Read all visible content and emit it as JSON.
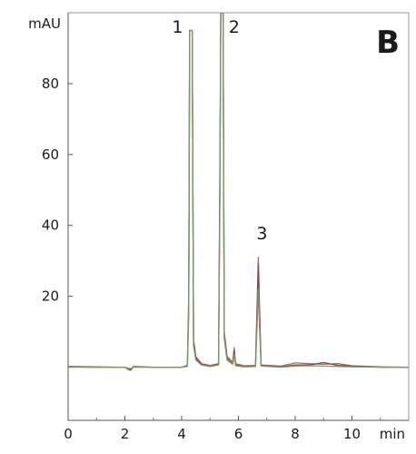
{
  "chart_data": {
    "type": "line",
    "panel_label": "B",
    "x_unit": "min",
    "y_unit": "mAU",
    "xlim": [
      0,
      12.0
    ],
    "ylim": [
      -15,
      100
    ],
    "x_ticks": [
      0,
      2,
      4,
      6,
      8,
      10
    ],
    "y_ticks": [
      20,
      40,
      60,
      80
    ],
    "grid": false,
    "peaks": [
      {
        "label": "1",
        "retention_time": 4.3
      },
      {
        "label": "2",
        "retention_time": 5.4
      },
      {
        "label": "3",
        "retention_time": 6.7
      }
    ],
    "series": [
      {
        "color": "#8b7a5a",
        "points": [
          [
            0,
            0.2
          ],
          [
            1.0,
            0.1
          ],
          [
            2.0,
            0
          ],
          [
            2.1,
            -0.6
          ],
          [
            2.2,
            -0.9
          ],
          [
            2.3,
            0.2
          ],
          [
            3.0,
            0
          ],
          [
            4.0,
            0
          ],
          [
            4.2,
            0.5
          ],
          [
            4.25,
            20
          ],
          [
            4.28,
            95
          ],
          [
            4.37,
            95
          ],
          [
            4.42,
            8
          ],
          [
            4.5,
            3
          ],
          [
            4.7,
            1
          ],
          [
            5.0,
            0.5
          ],
          [
            5.3,
            1
          ],
          [
            5.35,
            60
          ],
          [
            5.38,
            100
          ],
          [
            5.46,
            100
          ],
          [
            5.5,
            10
          ],
          [
            5.6,
            3
          ],
          [
            5.8,
            1.5
          ],
          [
            5.85,
            5.5
          ],
          [
            5.9,
            1
          ],
          [
            6.2,
            0.4
          ],
          [
            6.6,
            0.5
          ],
          [
            6.66,
            18
          ],
          [
            6.7,
            31
          ],
          [
            6.74,
            18
          ],
          [
            6.8,
            0.6
          ],
          [
            7.5,
            0.3
          ],
          [
            8.0,
            1.2
          ],
          [
            8.5,
            1
          ],
          [
            9.0,
            0.8
          ],
          [
            9.5,
            1.0
          ],
          [
            10.0,
            0.4
          ],
          [
            11.0,
            0.1
          ],
          [
            12.0,
            0
          ]
        ]
      },
      {
        "color": "#9e3d4a",
        "points": [
          [
            0,
            0.1
          ],
          [
            1.0,
            0
          ],
          [
            2.0,
            0
          ],
          [
            2.1,
            -0.4
          ],
          [
            2.2,
            -0.6
          ],
          [
            2.3,
            0.1
          ],
          [
            3.0,
            0
          ],
          [
            4.0,
            0
          ],
          [
            4.2,
            0.3
          ],
          [
            4.25,
            18
          ],
          [
            4.28,
            95
          ],
          [
            4.37,
            95
          ],
          [
            4.42,
            7
          ],
          [
            4.5,
            2.5
          ],
          [
            4.7,
            0.8
          ],
          [
            5.0,
            0.3
          ],
          [
            5.3,
            0.8
          ],
          [
            5.35,
            55
          ],
          [
            5.38,
            100
          ],
          [
            5.46,
            100
          ],
          [
            5.5,
            9
          ],
          [
            5.6,
            2.5
          ],
          [
            5.8,
            1
          ],
          [
            5.85,
            4.5
          ],
          [
            5.9,
            0.6
          ],
          [
            6.2,
            0.2
          ],
          [
            6.6,
            0.3
          ],
          [
            6.66,
            16
          ],
          [
            6.7,
            29
          ],
          [
            6.74,
            16
          ],
          [
            6.8,
            0.4
          ],
          [
            7.5,
            0.1
          ],
          [
            8.0,
            0.6
          ],
          [
            8.5,
            0.6
          ],
          [
            9.0,
            1.3
          ],
          [
            9.5,
            0.5
          ],
          [
            10.0,
            0.3
          ],
          [
            11.0,
            0
          ],
          [
            12.0,
            0
          ]
        ]
      },
      {
        "color": "#7a9a6e",
        "points": [
          [
            0,
            0
          ],
          [
            1.0,
            0
          ],
          [
            2.0,
            0
          ],
          [
            2.1,
            -0.3
          ],
          [
            2.2,
            -0.4
          ],
          [
            2.3,
            0
          ],
          [
            3.0,
            0
          ],
          [
            4.0,
            0
          ],
          [
            4.2,
            0.2
          ],
          [
            4.25,
            15
          ],
          [
            4.28,
            95
          ],
          [
            4.37,
            95
          ],
          [
            4.42,
            6
          ],
          [
            4.5,
            2
          ],
          [
            4.7,
            0.6
          ],
          [
            5.0,
            0.2
          ],
          [
            5.3,
            0.6
          ],
          [
            5.35,
            50
          ],
          [
            5.38,
            100
          ],
          [
            5.46,
            100
          ],
          [
            5.5,
            8
          ],
          [
            5.6,
            2
          ],
          [
            5.8,
            0.8
          ],
          [
            5.85,
            3.5
          ],
          [
            5.9,
            0.4
          ],
          [
            6.2,
            0.1
          ],
          [
            6.6,
            0.2
          ],
          [
            6.66,
            12
          ],
          [
            6.7,
            22
          ],
          [
            6.74,
            12
          ],
          [
            6.8,
            0.3
          ],
          [
            7.5,
            0
          ],
          [
            8.0,
            0.3
          ],
          [
            8.5,
            0.4
          ],
          [
            9.0,
            0.3
          ],
          [
            9.5,
            0.2
          ],
          [
            10.0,
            0.1
          ],
          [
            11.0,
            0
          ],
          [
            12.0,
            0
          ]
        ]
      }
    ]
  }
}
